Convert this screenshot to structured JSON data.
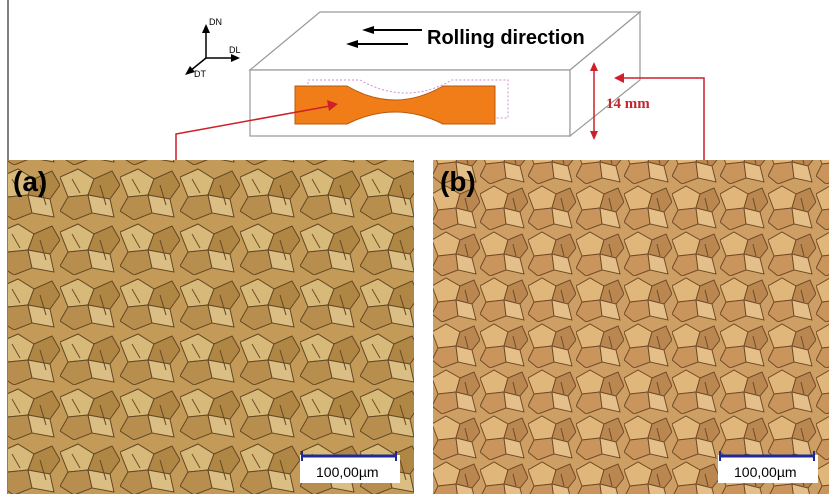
{
  "figure": {
    "rolling_label": "Rolling direction",
    "thickness_label": "14 mm",
    "axes": {
      "normal": "DN",
      "longitudinal": "DL",
      "transverse": "DT"
    },
    "panels": [
      {
        "letter": "(a)",
        "scale_bar": "100,00µm"
      },
      {
        "letter": "(b)",
        "scale_bar": "100,00µm"
      }
    ]
  },
  "colors": {
    "specimen": "#f07d18",
    "arrow": "#cf1f2a",
    "scale_bar": "#1f2a9a",
    "micrograph_a": "#c9a15c",
    "micrograph_b": "#d0a066"
  }
}
